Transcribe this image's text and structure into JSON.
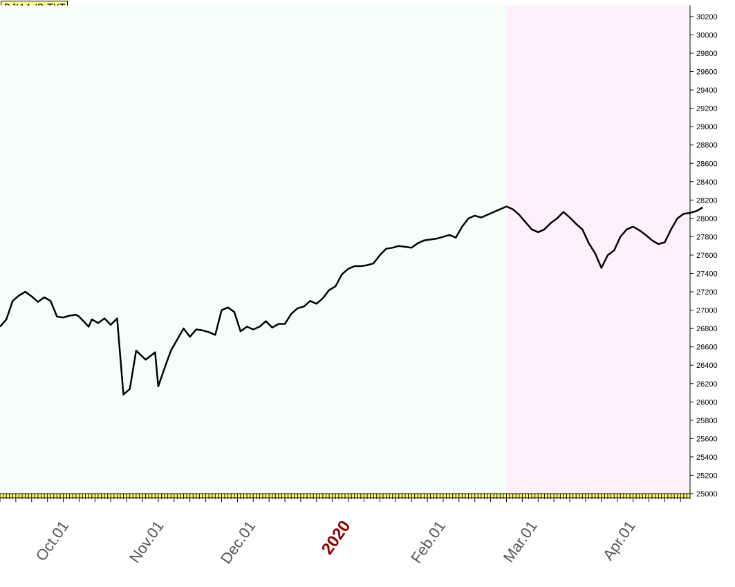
{
  "title": "DJIAA-ID.TXT",
  "chart_data": {
    "type": "line",
    "title": "DJIAA-ID.TXT",
    "xlabel": "",
    "ylabel": "",
    "ylim": [
      25000,
      30320
    ],
    "yticks": [
      25000,
      25200,
      25400,
      25600,
      25800,
      26000,
      26200,
      26400,
      26600,
      26800,
      27000,
      27200,
      27400,
      27600,
      27800,
      28000,
      28200,
      28400,
      28600,
      28800,
      29000,
      29200,
      29400,
      29600,
      29800,
      30000,
      30200
    ],
    "x_tick_labels": [
      {
        "label": "Oct.01",
        "idx": 21,
        "highlight": false
      },
      {
        "label": "Nov.01",
        "idx": 51,
        "highlight": false
      },
      {
        "label": "Dec.01",
        "idx": 80,
        "highlight": false
      },
      {
        "label": "2020",
        "idx": 110,
        "highlight": true
      },
      {
        "label": "Feb.01",
        "idx": 140,
        "highlight": false
      },
      {
        "label": "Mar.01",
        "idx": 169,
        "highlight": false
      },
      {
        "label": "Apr.01",
        "idx": 200,
        "highlight": false
      }
    ],
    "n_days": 218,
    "projection_start_idx": 160,
    "background_colors": {
      "history": "#f5fffa",
      "projection": "#fff0fa"
    },
    "series": [
      {
        "color": "#000000",
        "points": [
          [
            0,
            26820
          ],
          [
            2,
            26900
          ],
          [
            4,
            27100
          ],
          [
            6,
            27160
          ],
          [
            8,
            27200
          ],
          [
            10,
            27150
          ],
          [
            12,
            27090
          ],
          [
            14,
            27140
          ],
          [
            16,
            27100
          ],
          [
            18,
            26930
          ],
          [
            20,
            26920
          ],
          [
            22,
            26940
          ],
          [
            24,
            26950
          ],
          [
            25,
            26930
          ],
          [
            28,
            26820
          ],
          [
            29,
            26900
          ],
          [
            31,
            26860
          ],
          [
            33,
            26910
          ],
          [
            35,
            26840
          ],
          [
            37,
            26910
          ],
          [
            39,
            26080
          ],
          [
            41,
            26140
          ],
          [
            43,
            26560
          ],
          [
            46,
            26460
          ],
          [
            49,
            26540
          ],
          [
            50,
            26170
          ],
          [
            52,
            26370
          ],
          [
            54,
            26560
          ],
          [
            58,
            26800
          ],
          [
            60,
            26710
          ],
          [
            62,
            26790
          ],
          [
            64,
            26780
          ],
          [
            66,
            26760
          ],
          [
            68,
            26730
          ],
          [
            70,
            27000
          ],
          [
            72,
            27030
          ],
          [
            74,
            26980
          ],
          [
            76,
            26770
          ],
          [
            78,
            26820
          ],
          [
            80,
            26790
          ],
          [
            82,
            26820
          ],
          [
            84,
            26880
          ],
          [
            86,
            26810
          ],
          [
            88,
            26850
          ],
          [
            90,
            26850
          ],
          [
            92,
            26960
          ],
          [
            94,
            27020
          ],
          [
            96,
            27040
          ],
          [
            98,
            27100
          ],
          [
            100,
            27070
          ],
          [
            102,
            27130
          ],
          [
            104,
            27220
          ],
          [
            106,
            27260
          ],
          [
            108,
            27390
          ],
          [
            110,
            27450
          ],
          [
            112,
            27480
          ],
          [
            114,
            27480
          ],
          [
            116,
            27490
          ],
          [
            118,
            27510
          ],
          [
            120,
            27600
          ],
          [
            122,
            27670
          ],
          [
            124,
            27680
          ],
          [
            126,
            27700
          ],
          [
            128,
            27690
          ],
          [
            130,
            27680
          ],
          [
            132,
            27730
          ],
          [
            134,
            27760
          ],
          [
            136,
            27770
          ],
          [
            138,
            27780
          ],
          [
            140,
            27800
          ],
          [
            142,
            27820
          ],
          [
            144,
            27790
          ],
          [
            146,
            27910
          ],
          [
            148,
            28000
          ],
          [
            150,
            28030
          ],
          [
            152,
            28010
          ],
          [
            154,
            28040
          ],
          [
            156,
            28070
          ],
          [
            158,
            28100
          ],
          [
            160,
            28130
          ],
          [
            162,
            28100
          ],
          [
            164,
            28040
          ],
          [
            166,
            27960
          ],
          [
            168,
            27880
          ],
          [
            170,
            27850
          ],
          [
            172,
            27880
          ],
          [
            174,
            27950
          ],
          [
            176,
            28000
          ],
          [
            178,
            28070
          ],
          [
            180,
            28010
          ],
          [
            182,
            27940
          ],
          [
            184,
            27880
          ],
          [
            186,
            27730
          ],
          [
            188,
            27620
          ],
          [
            190,
            27460
          ],
          [
            192,
            27600
          ],
          [
            194,
            27650
          ],
          [
            196,
            27800
          ],
          [
            198,
            27880
          ],
          [
            200,
            27910
          ],
          [
            202,
            27870
          ],
          [
            204,
            27820
          ],
          [
            206,
            27760
          ],
          [
            208,
            27720
          ],
          [
            210,
            27740
          ],
          [
            212,
            27880
          ],
          [
            214,
            28000
          ],
          [
            216,
            28050
          ],
          [
            218,
            28060
          ],
          [
            220,
            28080
          ],
          [
            222,
            28120
          ]
        ]
      }
    ]
  }
}
